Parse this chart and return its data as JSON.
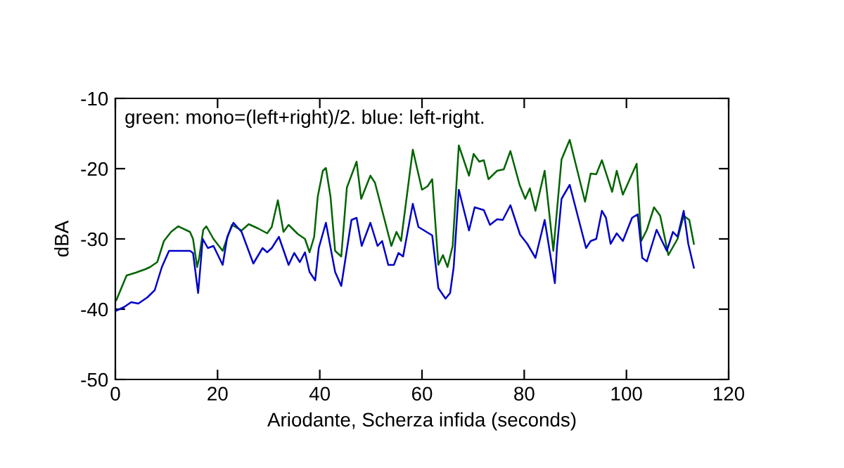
{
  "chart_data": {
    "type": "line",
    "xlabel": "Ariodante, Scherza infida (seconds)",
    "ylabel": "dBA",
    "annotations": [
      "green: mono=(left+right)/2. blue: left-right."
    ],
    "xlim": [
      0,
      120
    ],
    "xticks": [
      0,
      20,
      40,
      60,
      80,
      100,
      120
    ],
    "ylim": [
      -50,
      -10
    ],
    "yticks": [
      -50,
      -40,
      -30,
      -20,
      -10
    ],
    "series": [
      {
        "color": "#006400",
        "x": [
          0.2,
          2.2,
          4,
          5.9,
          6.8,
          8.2,
          9.5,
          10.9,
          12.3,
          14.6,
          15.2,
          16,
          16.4,
          17.2,
          17.8,
          19.2,
          21,
          22.8,
          24.7,
          26.1,
          27.9,
          29.7,
          30.6,
          31.8,
          32.9,
          33.9,
          35.7,
          37.1,
          38,
          38.9,
          39.6,
          40.6,
          41.2,
          42.1,
          43,
          44.2,
          45.3,
          47.2,
          48.1,
          49.9,
          50.8,
          54,
          55,
          55.9,
          58.2,
          60,
          61.1,
          62,
          63.2,
          64.1,
          65,
          66,
          67.2,
          69.2,
          70.1,
          71.2,
          72.1,
          73,
          74.7,
          76,
          77.3,
          79.1,
          80.2,
          81.1,
          82.2,
          84,
          85.7,
          87.3,
          88.9,
          91.9,
          93,
          94.1,
          95.2,
          97.2,
          98.1,
          99.3,
          102,
          102.9,
          104,
          105.4,
          106.6,
          108.2,
          110,
          111.2,
          112.3,
          113.2
        ],
        "values": [
          -38.7,
          -35.2,
          -34.8,
          -34.3,
          -34,
          -33.3,
          -30.3,
          -29,
          -28.2,
          -29,
          -30,
          -34,
          -32.7,
          -28.7,
          -28.2,
          -30,
          -31.7,
          -28,
          -28.8,
          -27.9,
          -28.5,
          -29.2,
          -28.3,
          -24.5,
          -29,
          -28,
          -29.3,
          -30,
          -31.9,
          -29.7,
          -24,
          -20.3,
          -19.9,
          -24,
          -31.7,
          -32.5,
          -22.7,
          -19,
          -24.3,
          -21,
          -22,
          -31,
          -29,
          -30.3,
          -17.3,
          -23,
          -22.5,
          -21.5,
          -33.7,
          -32.3,
          -34,
          -31,
          -16.7,
          -21,
          -17.9,
          -19,
          -18.8,
          -21.5,
          -20.3,
          -20.1,
          -17.5,
          -22.3,
          -24.3,
          -22.8,
          -26,
          -20.3,
          -31.7,
          -18.7,
          -15.9,
          -24.7,
          -20.7,
          -20.8,
          -18.8,
          -23.3,
          -20.3,
          -23.7,
          -19.3,
          -30.3,
          -28.7,
          -25.5,
          -26.7,
          -32.3,
          -30,
          -26.7,
          -27.3,
          -30.7
        ]
      },
      {
        "color": "#0000c8",
        "x": [
          0.2,
          1.7,
          3.1,
          4.5,
          6.3,
          7.7,
          9.1,
          10.5,
          14.6,
          15.2,
          16.2,
          17.1,
          18.1,
          19.2,
          21,
          21.9,
          23.1,
          24.7,
          27,
          28.8,
          29.7,
          30.6,
          32,
          33.9,
          35,
          36.1,
          37.1,
          38,
          39.1,
          39.8,
          41.2,
          43,
          44.2,
          46.2,
          47.2,
          48.2,
          49.9,
          51.3,
          52.2,
          53.4,
          54.5,
          55.4,
          56.3,
          58.2,
          59.3,
          62,
          63.2,
          64.6,
          65.5,
          66.2,
          67.2,
          69.2,
          70.3,
          72.1,
          73.3,
          74.7,
          75.8,
          77.3,
          79.2,
          80.6,
          82.2,
          84,
          86,
          86.4,
          87.3,
          88.9,
          92.1,
          93,
          94.1,
          95.2,
          96,
          96.9,
          98.1,
          99.3,
          101.1,
          102.2,
          103.1,
          104,
          105.9,
          107.9,
          109.1,
          110,
          111.2,
          112.1,
          113.2
        ],
        "values": [
          -40.2,
          -39.7,
          -39,
          -39.2,
          -38.3,
          -37.3,
          -34,
          -31.7,
          -31.7,
          -32,
          -37.7,
          -30,
          -31.3,
          -31,
          -33.7,
          -29.7,
          -27.7,
          -29,
          -33.5,
          -31.3,
          -31.9,
          -31.3,
          -29.7,
          -33.7,
          -32,
          -33.3,
          -31.9,
          -34.7,
          -35.9,
          -31.3,
          -27.7,
          -34.7,
          -36.7,
          -27.3,
          -27,
          -31,
          -27.7,
          -31,
          -30.3,
          -33.7,
          -33.7,
          -32,
          -32.5,
          -25,
          -28.3,
          -29.5,
          -37,
          -38.5,
          -37.7,
          -34,
          -23,
          -28.8,
          -25.5,
          -25.9,
          -28,
          -27.2,
          -27.3,
          -25.2,
          -29.4,
          -30.7,
          -32.7,
          -27.3,
          -36.3,
          -31.3,
          -24.3,
          -22.3,
          -31.3,
          -30.3,
          -30,
          -26,
          -27,
          -30.7,
          -29.2,
          -30.3,
          -27,
          -26.5,
          -32.7,
          -33.2,
          -28.7,
          -31.7,
          -29,
          -29.7,
          -26,
          -30.7,
          -34.1
        ]
      }
    ]
  }
}
